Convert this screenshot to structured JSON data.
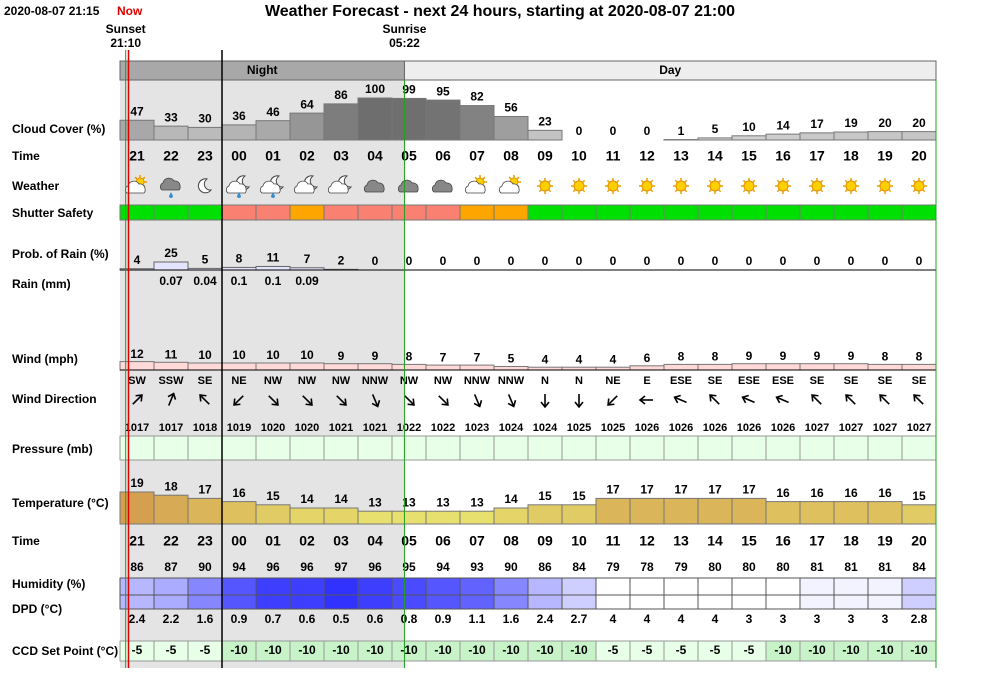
{
  "header": {
    "timestamp": "2020-08-07 21:15",
    "now": "Now",
    "title": "Weather Forecast - next 24 hours, starting at 2020-08-07 21:00",
    "sunset": {
      "label": "Sunset",
      "time": "21:10"
    },
    "sunrise": {
      "label": "Sunrise",
      "time": "05:22"
    },
    "night": "Night",
    "day": "Day"
  },
  "hours": [
    "21",
    "22",
    "23",
    "00",
    "01",
    "02",
    "03",
    "04",
    "05",
    "06",
    "07",
    "08",
    "09",
    "10",
    "11",
    "12",
    "13",
    "14",
    "15",
    "16",
    "17",
    "18",
    "19",
    "20"
  ],
  "rows": {
    "cloud_cover": {
      "label": "Cloud Cover (%)",
      "values": [
        47,
        33,
        30,
        36,
        46,
        64,
        86,
        100,
        99,
        95,
        82,
        56,
        23,
        0,
        0,
        0,
        1,
        5,
        10,
        14,
        17,
        19,
        20,
        20
      ]
    },
    "time": {
      "label": "Time"
    },
    "weather": {
      "label": "Weather"
    },
    "shutter_safety": {
      "label": "Shutter Safety",
      "colors": [
        "#00e000",
        "#00e000",
        "#00e000",
        "#fa8072",
        "#fa8072",
        "#ffa500",
        "#fa8072",
        "#fa8072",
        "#fa8072",
        "#fa8072",
        "#ffa500",
        "#ffa500",
        "#00e000",
        "#00e000",
        "#00e000",
        "#00e000",
        "#00e000",
        "#00e000",
        "#00e000",
        "#00e000",
        "#00e000",
        "#00e000",
        "#00e000",
        "#00e000"
      ]
    },
    "rain_probability": {
      "label": "Prob. of Rain (%)",
      "values": [
        4,
        25,
        5,
        8,
        11,
        7,
        2,
        0,
        0,
        0,
        0,
        0,
        0,
        0,
        0,
        0,
        0,
        0,
        0,
        0,
        0,
        0,
        0,
        0
      ]
    },
    "rain": {
      "label": "Rain (mm)",
      "values": [
        null,
        0.07,
        0.04,
        0.1,
        0.1,
        0.09,
        null,
        null,
        null,
        null,
        null,
        null,
        null,
        null,
        null,
        null,
        null,
        null,
        null,
        null,
        null,
        null,
        null,
        null
      ]
    },
    "wind": {
      "label": "Wind (mph)",
      "values": [
        12,
        11,
        10,
        10,
        10,
        10,
        9,
        9,
        8,
        7,
        7,
        5,
        4,
        4,
        4,
        6,
        8,
        8,
        9,
        9,
        9,
        9,
        8,
        8
      ]
    },
    "wind_direction": {
      "label": "Wind Direction",
      "values": [
        "SW",
        "SSW",
        "SE",
        "NE",
        "NW",
        "NW",
        "NW",
        "NNW",
        "NW",
        "NW",
        "NNW",
        "NNW",
        "N",
        "N",
        "NE",
        "E",
        "ESE",
        "SE",
        "ESE",
        "ESE",
        "SE",
        "SE",
        "SE",
        "SE"
      ]
    },
    "pressure": {
      "label": "Pressure (mb)",
      "values": [
        1017,
        1017,
        1018,
        1019,
        1020,
        1020,
        1021,
        1021,
        1022,
        1022,
        1023,
        1024,
        1024,
        1025,
        1025,
        1026,
        1026,
        1026,
        1026,
        1026,
        1027,
        1027,
        1027,
        1027
      ]
    },
    "temperature": {
      "label": "Temperature (°C)",
      "values": [
        19,
        18,
        17,
        16,
        15,
        14,
        14,
        13,
        13,
        13,
        13,
        14,
        15,
        15,
        17,
        17,
        17,
        17,
        17,
        16,
        16,
        16,
        16,
        15
      ]
    },
    "time_lower": {
      "label": "Time"
    },
    "humidity": {
      "label": "Humidity (%)",
      "values": [
        86,
        87,
        90,
        94,
        96,
        96,
        97,
        96,
        95,
        94,
        93,
        90,
        86,
        84,
        79,
        78,
        79,
        80,
        80,
        80,
        81,
        81,
        81,
        84
      ]
    },
    "dpd": {
      "label": "DPD (°C)",
      "values": [
        2.4,
        2.2,
        1.6,
        0.9,
        0.7,
        0.6,
        0.5,
        0.6,
        0.8,
        0.9,
        1.1,
        1.6,
        2.4,
        2.7,
        4,
        4,
        4,
        4,
        3,
        3,
        3,
        3,
        3,
        2.8
      ]
    },
    "ccd": {
      "label": "CCD Set Point (°C)",
      "values": [
        -5,
        -5,
        -5,
        -10,
        -10,
        -10,
        -10,
        -10,
        -10,
        -10,
        -10,
        -10,
        -10,
        -10,
        -5,
        -5,
        -5,
        -5,
        -5,
        -10,
        -10,
        -10,
        -10,
        -10
      ]
    }
  }
}
